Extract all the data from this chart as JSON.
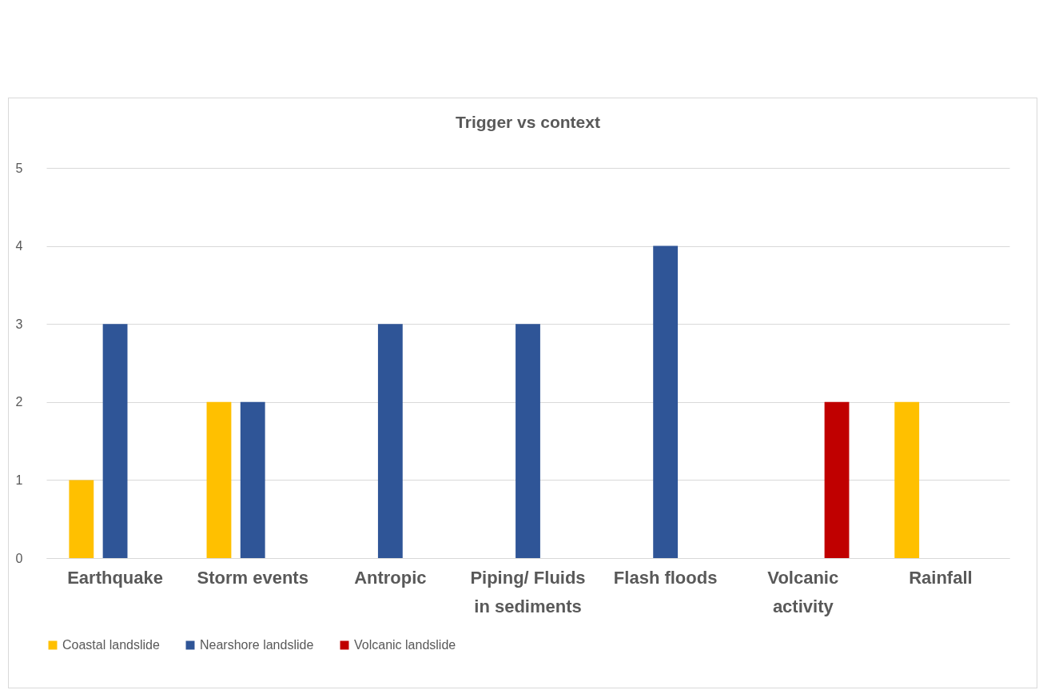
{
  "chart_data": {
    "type": "bar",
    "title": "Trigger vs context",
    "categories": [
      "Earthquake",
      "Storm events",
      "Antropic",
      "Piping/ Fluids in sediments",
      "Flash floods",
      "Volcanic activity",
      "Rainfall"
    ],
    "series": [
      {
        "name": "Coastal landslide",
        "color": "#ffc000",
        "values": [
          1,
          2,
          0,
          0,
          0,
          0,
          2
        ]
      },
      {
        "name": "Nearshore landslide",
        "color": "#2f5597",
        "values": [
          3,
          2,
          3,
          3,
          4,
          0,
          0
        ]
      },
      {
        "name": "Volcanic landslide",
        "color": "#c00000",
        "values": [
          0,
          0,
          0,
          0,
          0,
          2,
          0
        ]
      }
    ],
    "ylim": [
      0,
      5
    ],
    "yticks": [
      0,
      1,
      2,
      3,
      4,
      5
    ],
    "grid": "y",
    "legend": "bottom"
  }
}
